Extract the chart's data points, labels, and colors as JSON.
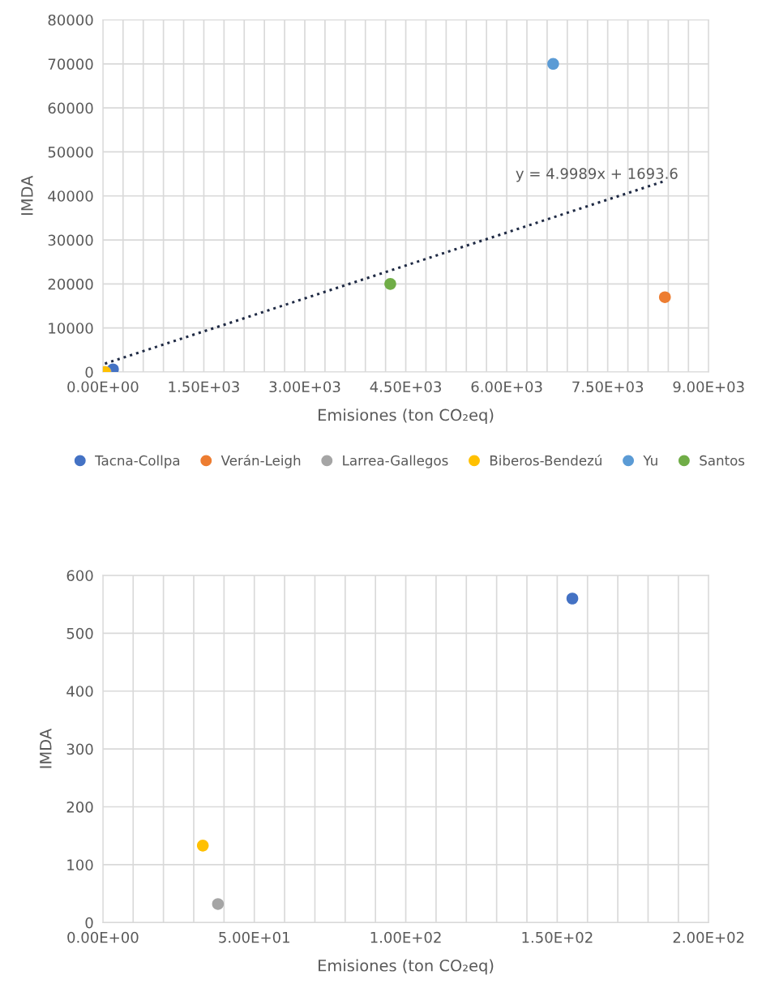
{
  "chart_data": [
    {
      "type": "scatter",
      "xlabel": "Emisiones (ton CO₂eq)",
      "ylabel": "IMDA",
      "marker": "circle",
      "grid": true,
      "legend": "bottom",
      "xlim": [
        0,
        9000
      ],
      "ylim": [
        0,
        80000
      ],
      "xticks": [
        {
          "value": 0,
          "label": "0.00E+00"
        },
        {
          "value": 300,
          "label": null
        },
        {
          "value": 600,
          "label": null
        },
        {
          "value": 900,
          "label": null
        },
        {
          "value": 1200,
          "label": null
        },
        {
          "value": 1500,
          "label": "1.50E+03"
        },
        {
          "value": 1800,
          "label": null
        },
        {
          "value": 2100,
          "label": null
        },
        {
          "value": 2400,
          "label": null
        },
        {
          "value": 2700,
          "label": null
        },
        {
          "value": 3000,
          "label": "3.00E+03"
        },
        {
          "value": 3300,
          "label": null
        },
        {
          "value": 3600,
          "label": null
        },
        {
          "value": 3900,
          "label": null
        },
        {
          "value": 4200,
          "label": null
        },
        {
          "value": 4500,
          "label": "4.50E+03"
        },
        {
          "value": 4800,
          "label": null
        },
        {
          "value": 5100,
          "label": null
        },
        {
          "value": 5400,
          "label": null
        },
        {
          "value": 5700,
          "label": null
        },
        {
          "value": 6000,
          "label": "6.00E+03"
        },
        {
          "value": 6300,
          "label": null
        },
        {
          "value": 6600,
          "label": null
        },
        {
          "value": 6900,
          "label": null
        },
        {
          "value": 7200,
          "label": null
        },
        {
          "value": 7500,
          "label": "7.50E+03"
        },
        {
          "value": 7800,
          "label": null
        },
        {
          "value": 8100,
          "label": null
        },
        {
          "value": 8400,
          "label": null
        },
        {
          "value": 8700,
          "label": null
        },
        {
          "value": 9000,
          "label": "9.00E+03"
        }
      ],
      "yticks": [
        0,
        10000,
        20000,
        30000,
        40000,
        50000,
        60000,
        70000,
        80000
      ],
      "annotations": [
        "y = 4.9989x + 1693.6"
      ],
      "series": [
        {
          "name": "Tacna-Collpa",
          "color": "#4472c4",
          "x": [
            150
          ],
          "values": [
            600
          ]
        },
        {
          "name": "Verán-Leigh",
          "color": "#ed7d31",
          "x": [
            8350
          ],
          "values": [
            17000
          ]
        },
        {
          "name": "Larrea-Gallegos",
          "color": "#a5a5a5",
          "x": [
            40
          ],
          "values": [
            0
          ]
        },
        {
          "name": "Biberos-Bendezú",
          "color": "#ffc000",
          "x": [
            30
          ],
          "values": [
            0
          ]
        },
        {
          "name": "Yu",
          "color": "#5b9bd5",
          "x": [
            6690
          ],
          "values": [
            70000
          ]
        },
        {
          "name": "Santos",
          "color": "#70ad47",
          "x": [
            4270
          ],
          "values": [
            20000
          ]
        },
        {
          "type": "line",
          "line_style": "dotted",
          "marker": "none",
          "color": "#1f2a44",
          "x": [
            30,
            8350
          ],
          "values": [
            1900,
            43400
          ]
        }
      ]
    },
    {
      "type": "scatter",
      "xlabel": "Emisiones (ton CO₂eq)",
      "ylabel": "IMDA",
      "marker": "circle",
      "grid": true,
      "xlim": [
        0,
        200
      ],
      "ylim": [
        0,
        600
      ],
      "xticks": [
        {
          "value": 0,
          "label": "0.00E+00"
        },
        {
          "value": 10,
          "label": null
        },
        {
          "value": 20,
          "label": null
        },
        {
          "value": 30,
          "label": null
        },
        {
          "value": 40,
          "label": null
        },
        {
          "value": 50,
          "label": "5.00E+01"
        },
        {
          "value": 60,
          "label": null
        },
        {
          "value": 70,
          "label": null
        },
        {
          "value": 80,
          "label": null
        },
        {
          "value": 90,
          "label": null
        },
        {
          "value": 100,
          "label": "1.00E+02"
        },
        {
          "value": 110,
          "label": null
        },
        {
          "value": 120,
          "label": null
        },
        {
          "value": 130,
          "label": null
        },
        {
          "value": 140,
          "label": null
        },
        {
          "value": 150,
          "label": "1.50E+02"
        },
        {
          "value": 160,
          "label": null
        },
        {
          "value": 170,
          "label": null
        },
        {
          "value": 180,
          "label": null
        },
        {
          "value": 190,
          "label": null
        },
        {
          "value": 200,
          "label": "2.00E+02"
        }
      ],
      "yticks": [
        0,
        100,
        200,
        300,
        400,
        500,
        600
      ],
      "series": [
        {
          "color": "#4472c4",
          "x": [
            155
          ],
          "values": [
            560
          ]
        },
        {
          "color": "#a5a5a5",
          "x": [
            38
          ],
          "values": [
            32
          ]
        },
        {
          "color": "#ffc000",
          "x": [
            33
          ],
          "values": [
            133
          ]
        }
      ]
    }
  ]
}
